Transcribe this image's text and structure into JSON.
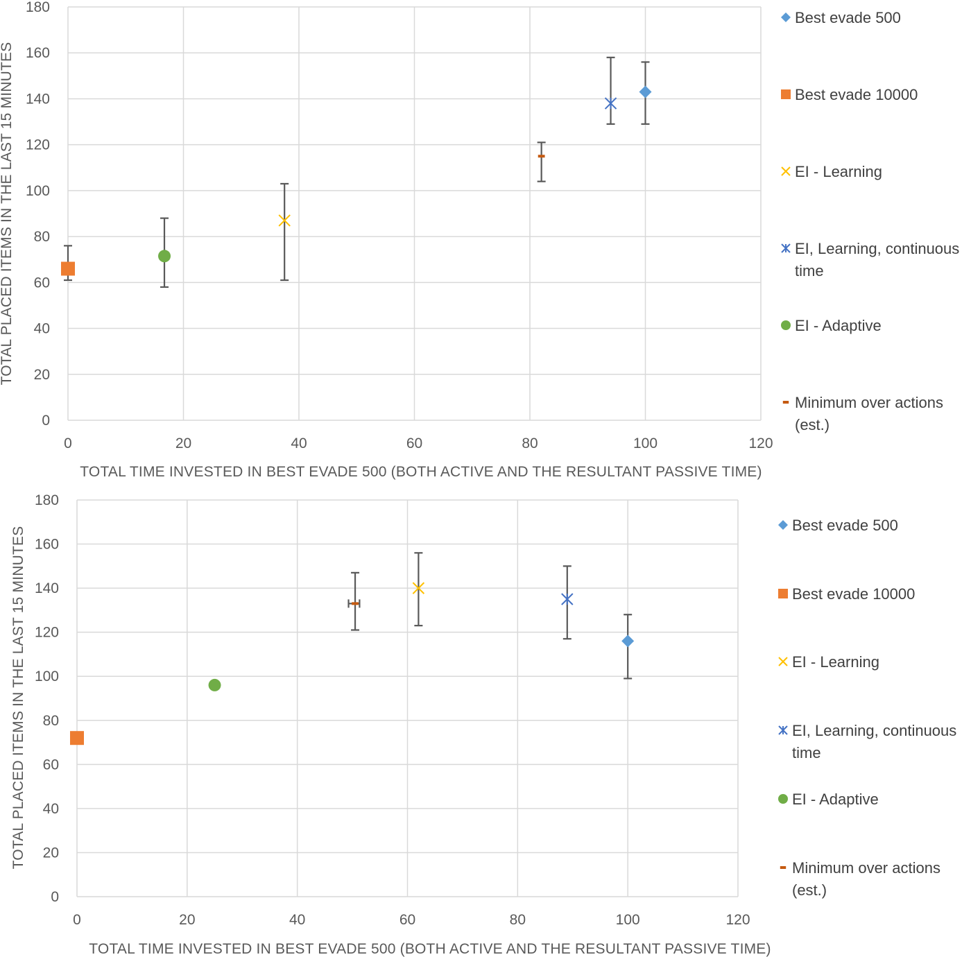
{
  "chart_data": [
    {
      "type": "scatter",
      "title": "",
      "xlabel": "TOTAL TIME INVESTED IN BEST EVADE 500 (BOTH ACTIVE AND THE RESULTANT PASSIVE TIME)",
      "ylabel": "TOTAL PLACED ITEMS IN THE LAST 15 MINUTES",
      "xlim": [
        0,
        120
      ],
      "ylim": [
        0,
        180
      ],
      "xticks": [
        0,
        20,
        40,
        60,
        80,
        100,
        120
      ],
      "yticks": [
        0,
        20,
        40,
        60,
        80,
        100,
        120,
        140,
        160,
        180
      ],
      "grid": true,
      "legend_position": "right",
      "series": [
        {
          "name": "Best evade 500",
          "marker": "diamond",
          "color": "#5b9bd5",
          "x": 100,
          "y": 143,
          "yerr": [
            129,
            156
          ]
        },
        {
          "name": "Best evade 10000",
          "marker": "square",
          "color": "#ed7d31",
          "x": 0,
          "y": 66,
          "yerr": [
            61,
            76
          ]
        },
        {
          "name": "EI - Learning",
          "marker": "x",
          "color": "#ffc000",
          "x": 37.5,
          "y": 87,
          "yerr": [
            61,
            103
          ]
        },
        {
          "name": "EI, Learning, continuous time",
          "marker": "star",
          "color": "#4472c4",
          "x": 94,
          "y": 138,
          "yerr": [
            129,
            158
          ]
        },
        {
          "name": "EI - Adaptive",
          "marker": "circle",
          "color": "#70ad47",
          "x": 16.7,
          "y": 71.5,
          "yerr": [
            58,
            88
          ]
        },
        {
          "name": "Minimum over actions (est.)",
          "marker": "dash",
          "color": "#c55a11",
          "x": 82,
          "y": 115,
          "yerr": [
            104,
            121
          ]
        }
      ]
    },
    {
      "type": "scatter",
      "title": "",
      "xlabel": "TOTAL TIME INVESTED IN BEST EVADE 500 (BOTH ACTIVE AND THE RESULTANT PASSIVE TIME)",
      "ylabel": "TOTAL PLACED ITEMS IN THE LAST 15 MINUTES",
      "xlim": [
        0,
        120
      ],
      "ylim": [
        0,
        180
      ],
      "xticks": [
        0,
        20,
        40,
        60,
        80,
        100,
        120
      ],
      "yticks": [
        0,
        20,
        40,
        60,
        80,
        100,
        120,
        140,
        160,
        180
      ],
      "grid": true,
      "legend_position": "right",
      "series": [
        {
          "name": "Best evade 500",
          "marker": "diamond",
          "color": "#5b9bd5",
          "x": 100,
          "y": 116,
          "yerr": [
            99,
            128
          ]
        },
        {
          "name": "Best evade 10000",
          "marker": "square",
          "color": "#ed7d31",
          "x": 0,
          "y": 72,
          "yerr": null
        },
        {
          "name": "EI - Learning",
          "marker": "x",
          "color": "#ffc000",
          "x": 62,
          "y": 140,
          "yerr": [
            123,
            156
          ]
        },
        {
          "name": "EI, Learning, continuous time",
          "marker": "star",
          "color": "#4472c4",
          "x": 89,
          "y": 135,
          "yerr": [
            117,
            150
          ]
        },
        {
          "name": "EI - Adaptive",
          "marker": "circle",
          "color": "#70ad47",
          "x": 25,
          "y": 96,
          "yerr": null
        },
        {
          "name": "Minimum over actions (est.)",
          "marker": "dash",
          "color": "#c55a11",
          "x": 50.5,
          "y": 133,
          "yerr": [
            121,
            147
          ],
          "xerr": [
            49.3,
            51.3
          ]
        }
      ]
    }
  ]
}
